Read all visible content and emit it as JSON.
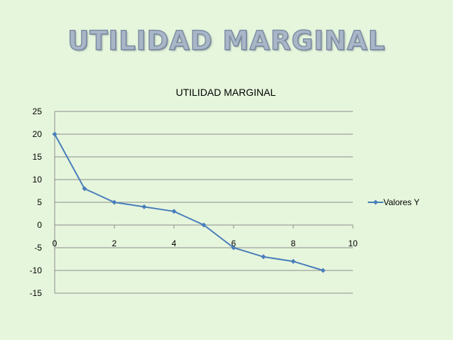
{
  "slide": {
    "title": "UTILIDAD MARGINAL"
  },
  "colors": {
    "background": "#e6f6dc",
    "series": "#4a7ebb",
    "grid": "#8c8c8c"
  },
  "chart_data": {
    "type": "scatter",
    "title": "UTILIDAD MARGINAL",
    "xlabel": "",
    "ylabel": "",
    "xlim": [
      0,
      10
    ],
    "ylim": [
      -15,
      25
    ],
    "x_ticks": [
      "0",
      "2",
      "4",
      "6",
      "8",
      "10"
    ],
    "y_ticks": [
      "25",
      "20",
      "15",
      "10",
      "5",
      "0",
      "-5",
      "-10",
      "-15"
    ],
    "grid": "horizontal",
    "legend_position": "right",
    "series": [
      {
        "name": "Valores Y",
        "x": [
          0,
          1,
          2,
          3,
          4,
          5,
          6,
          7,
          8,
          9
        ],
        "y": [
          20,
          8,
          5,
          4,
          3,
          0,
          -5,
          -7,
          -8,
          -10
        ]
      }
    ]
  }
}
